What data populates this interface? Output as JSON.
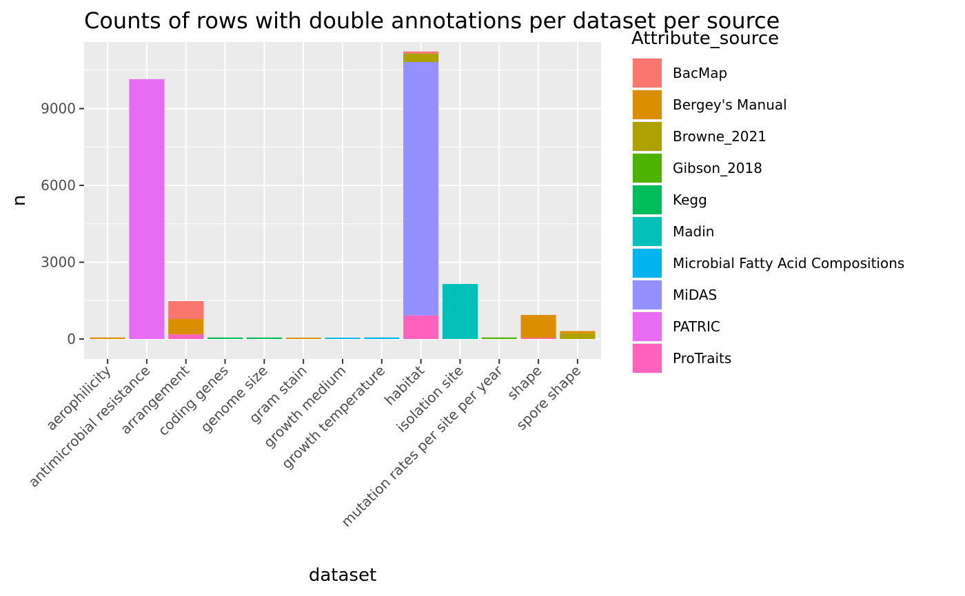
{
  "chart_data": {
    "type": "bar",
    "stacked": true,
    "title": "Counts of rows with double annotations per dataset per source",
    "xlabel": "dataset",
    "ylabel": "n",
    "ylim": [
      -780,
      11600
    ],
    "yticks": [
      0,
      3000,
      6000,
      9000
    ],
    "ytick_labels": [
      "0",
      "3000",
      "6000",
      "9000"
    ],
    "grid": true,
    "legend": {
      "title": "Attribute_source",
      "placement": "right"
    },
    "categories": [
      "aerophilicity",
      "antimicrobial resistance",
      "arrangement",
      "coding genes",
      "genome size",
      "gram stain",
      "growth medium",
      "growth temperature",
      "habitat",
      "isolation site",
      "mutation rates per site per year",
      "shape",
      "spore shape"
    ],
    "series": [
      {
        "name": "BacMap",
        "color": "#F8766D",
        "values": [
          0,
          0,
          700,
          0,
          0,
          0,
          0,
          0,
          80,
          0,
          0,
          0,
          0
        ]
      },
      {
        "name": "Bergey's Manual",
        "color": "#DB8E00",
        "values": [
          60,
          0,
          600,
          0,
          0,
          20,
          0,
          0,
          0,
          0,
          0,
          900,
          90
        ]
      },
      {
        "name": "Browne_2021",
        "color": "#AEA200",
        "values": [
          0,
          0,
          0,
          0,
          0,
          0,
          0,
          0,
          330,
          0,
          0,
          0,
          220
        ]
      },
      {
        "name": "Gibson_2018",
        "color": "#4DB300",
        "values": [
          0,
          0,
          0,
          0,
          0,
          0,
          0,
          0,
          0,
          0,
          60,
          0,
          0
        ]
      },
      {
        "name": "Kegg",
        "color": "#00BD5C",
        "values": [
          0,
          0,
          0,
          60,
          60,
          0,
          0,
          0,
          0,
          0,
          0,
          0,
          0
        ]
      },
      {
        "name": "Madin",
        "color": "#00C0B8",
        "values": [
          0,
          0,
          0,
          0,
          0,
          0,
          0,
          0,
          0,
          2150,
          0,
          0,
          0
        ]
      },
      {
        "name": "Microbial Fatty Acid Compositions",
        "color": "#00B4F0",
        "values": [
          0,
          0,
          0,
          0,
          0,
          0,
          25,
          60,
          0,
          0,
          0,
          0,
          0
        ]
      },
      {
        "name": "MiDAS",
        "color": "#9590FF",
        "values": [
          0,
          0,
          0,
          0,
          0,
          0,
          0,
          0,
          9900,
          0,
          0,
          0,
          0
        ]
      },
      {
        "name": "PATRIC",
        "color": "#E76BF3",
        "values": [
          0,
          10150,
          0,
          0,
          0,
          0,
          0,
          0,
          0,
          0,
          0,
          0,
          0
        ]
      },
      {
        "name": "ProTraits",
        "color": "#FF62BC",
        "values": [
          0,
          0,
          180,
          0,
          0,
          0,
          0,
          0,
          920,
          0,
          0,
          40,
          0
        ]
      }
    ]
  },
  "colors": {
    "panel_background": "#EBEBEB",
    "grid_major": "#FFFFFF",
    "tick_text": "#4D4D4D",
    "tick_line": "#333333"
  }
}
